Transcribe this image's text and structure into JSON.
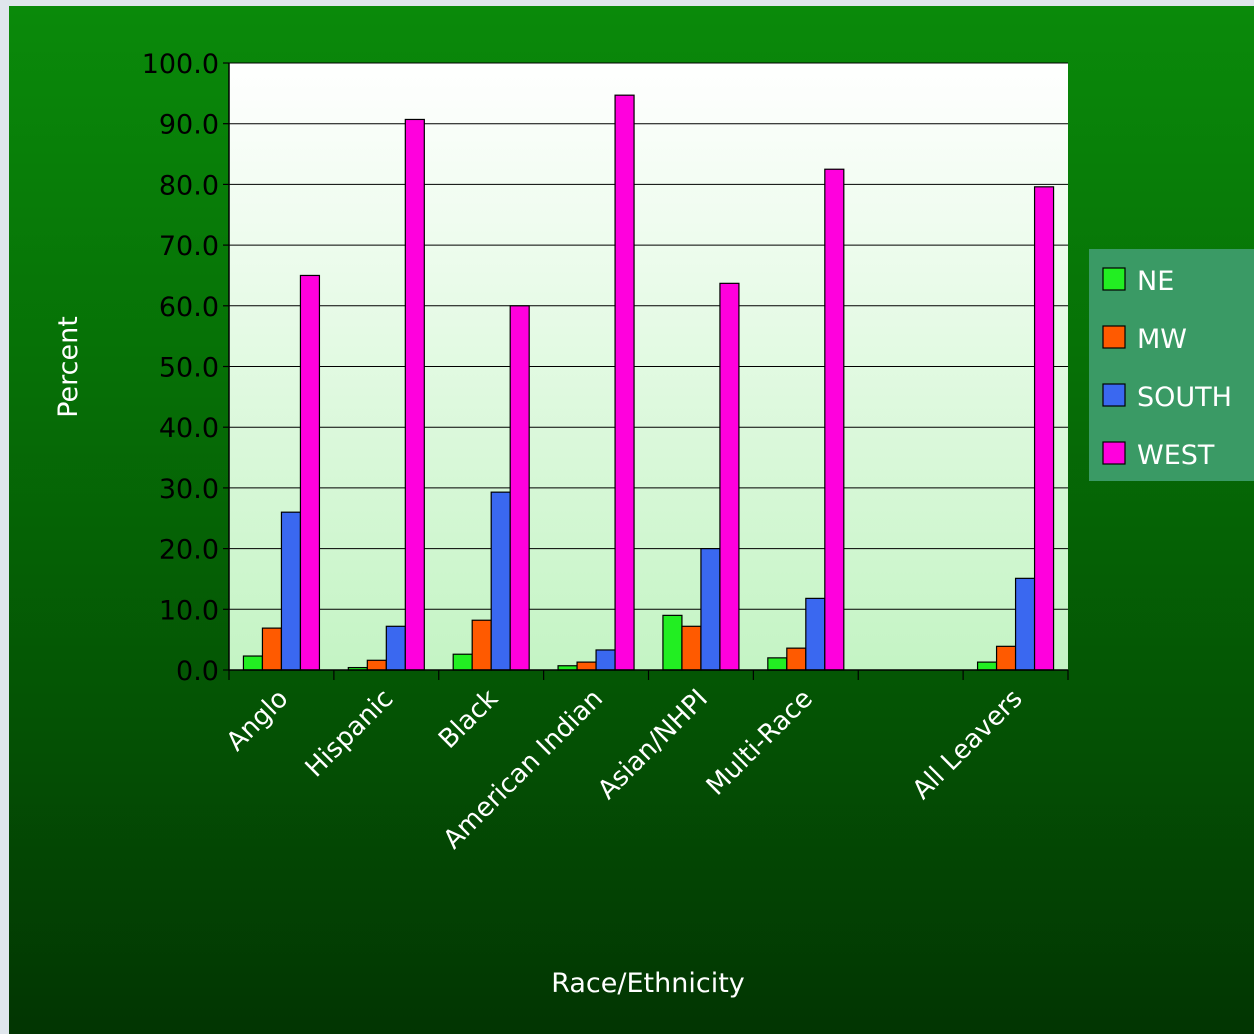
{
  "chart_data": {
    "type": "bar",
    "categories": [
      "Anglo",
      "Hispanic",
      "Black",
      "American Indian",
      "Asian/NHPI",
      "Multi-Race",
      "",
      "All Leavers"
    ],
    "series": [
      {
        "name": "NE",
        "color": "#22ee22",
        "values": [
          2.3,
          0.4,
          2.6,
          0.7,
          9.0,
          2.0,
          null,
          1.3
        ]
      },
      {
        "name": "MW",
        "color": "#ff5a00",
        "values": [
          6.9,
          1.6,
          8.2,
          1.3,
          7.2,
          3.6,
          null,
          3.9
        ]
      },
      {
        "name": "SOUTH",
        "color": "#3a68f0",
        "values": [
          26.0,
          7.2,
          29.3,
          3.3,
          20.0,
          11.8,
          null,
          15.1
        ]
      },
      {
        "name": "WEST",
        "color": "#ff00dd",
        "values": [
          65.0,
          90.7,
          60.0,
          94.7,
          63.7,
          82.5,
          null,
          79.6
        ]
      }
    ],
    "title": "",
    "xlabel": "Race/Ethnicity",
    "ylabel": "Percent",
    "ylim": [
      0,
      100
    ],
    "yticks": [
      "0.0",
      "10.0",
      "20.0",
      "30.0",
      "40.0",
      "50.0",
      "60.0",
      "70.0",
      "80.0",
      "90.0",
      "100.0"
    ],
    "grid": true,
    "legend": "right"
  }
}
